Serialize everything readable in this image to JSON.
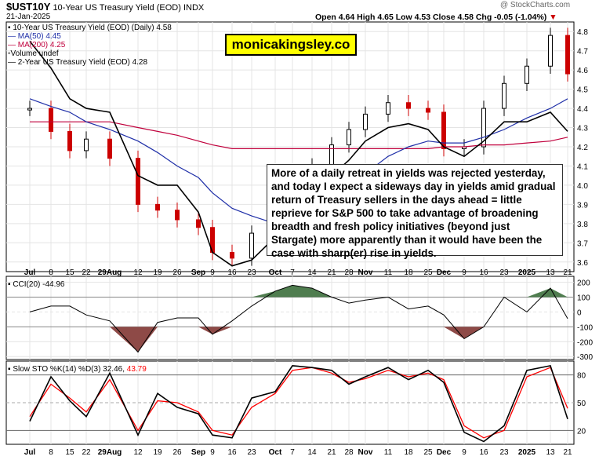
{
  "header": {
    "symbol": "$UST10Y",
    "name": "10-Year US Treasury Yield (EOD)",
    "exchange": "INDX",
    "date": "21-Jan-2025",
    "ohlc": "Open 4.64  High 4.65  Low 4.53  Close 4.58  Chg -0.05 (-1.04%)",
    "chg_marker": "▼",
    "copyright": "@ StockCharts.com"
  },
  "brand_label": "monicakingsley.co",
  "annotation": "More of a daily retreat in yields was rejected yesterday, and today I expect a sideways day in yields amid gradual return of Treasury sellers in the days ahead = little reprieve for S&P 500 to take advantage of broadening breadth and fresh policy initiatives (beyond just Stargate) more apparently than it would have been the case with sharp(er) rise in yields.",
  "legend": {
    "main": "10-Year US Treasury Yield (EOD) (Daily) 4.58",
    "ma50": "MA(50) 4.45",
    "ma200": "MA(200) 4.25",
    "volume": "Volume undef",
    "two_year": "2-Year US Treasury Yield (EOD) 4.28",
    "cci": "CCI(20) -44.96",
    "sto_prefix": "Slow STO %K(14) %D(3) 32.46,",
    "sto_d_value": "43.79"
  },
  "colors": {
    "up": "#000000",
    "down": "#cc0000",
    "ma50": "#1f2fa8",
    "ma200": "#c0003c",
    "two_year": "#000000",
    "cci_pos": "#4f7d4f",
    "cci_neg": "#8e4a47",
    "sto_k": "#000000",
    "sto_d": "#ff0000",
    "panel_bg": "#ffffff"
  },
  "x_axis_labels": [
    "Jul",
    "8",
    "15",
    "22",
    "29Aug",
    "12",
    "19",
    "26",
    "Sep",
    "9",
    "16",
    "23",
    "Oct",
    "7",
    "14",
    "21",
    "28",
    "Nov",
    "11",
    "18",
    "25",
    "Dec",
    "9",
    "16",
    "23",
    "2025",
    "13",
    "21"
  ],
  "chart_data": [
    {
      "type": "bar",
      "title": "10-Year US Treasury Yield (EOD) (Daily)",
      "ylim": [
        3.55,
        4.85
      ],
      "yticks": [
        "4.8",
        "4.7",
        "4.6",
        "4.5",
        "4.4",
        "4.3",
        "4.2",
        "4.1",
        "4.0",
        "3.9",
        "3.8",
        "3.7",
        "3.6"
      ],
      "x": [
        "Jul",
        "8",
        "15",
        "22",
        "29Aug",
        "12",
        "19",
        "26",
        "Sep",
        "9",
        "16",
        "23",
        "Oct",
        "7",
        "14",
        "21",
        "28",
        "Nov",
        "11",
        "18",
        "25",
        "Dec",
        "9",
        "16",
        "23",
        "2025",
        "13",
        "21"
      ],
      "close": [
        4.4,
        4.28,
        4.18,
        4.24,
        4.14,
        3.9,
        3.87,
        3.82,
        3.78,
        3.65,
        3.62,
        3.75,
        3.79,
        4.02,
        4.1,
        4.21,
        4.29,
        4.37,
        4.43,
        4.4,
        4.38,
        4.19,
        4.2,
        4.4,
        4.53,
        4.62,
        4.78,
        4.58
      ],
      "two_year": [
        4.75,
        4.61,
        4.45,
        4.4,
        4.38,
        4.05,
        4.0,
        4.0,
        3.86,
        3.65,
        3.58,
        3.61,
        3.73,
        3.95,
        4.02,
        4.05,
        4.13,
        4.23,
        4.3,
        4.32,
        4.29,
        4.2,
        4.15,
        4.23,
        4.33,
        4.33,
        4.38,
        4.28
      ],
      "ma50": [
        4.45,
        4.41,
        4.38,
        4.33,
        4.29,
        4.23,
        4.17,
        4.1,
        4.04,
        3.96,
        3.88,
        3.84,
        3.8,
        3.8,
        3.83,
        3.88,
        3.98,
        4.06,
        4.15,
        4.2,
        4.23,
        4.22,
        4.22,
        4.25,
        4.29,
        4.35,
        4.4,
        4.45
      ],
      "ma200": [
        4.33,
        4.33,
        4.33,
        4.33,
        4.33,
        4.3,
        4.28,
        4.26,
        4.23,
        4.21,
        4.19,
        4.19,
        4.19,
        4.19,
        4.19,
        4.19,
        4.19,
        4.19,
        4.19,
        4.19,
        4.19,
        4.2,
        4.2,
        4.21,
        4.21,
        4.22,
        4.23,
        4.25
      ]
    },
    {
      "type": "area",
      "title": "CCI(20)",
      "ylim": [
        -320,
        240
      ],
      "yticks": [
        "200",
        "100",
        "0",
        "-100",
        "-200",
        "-300"
      ],
      "values": [
        0,
        40,
        40,
        -20,
        -60,
        -270,
        -70,
        -40,
        -40,
        -150,
        -60,
        40,
        140,
        180,
        160,
        100,
        60,
        80,
        100,
        20,
        40,
        -20,
        -180,
        -100,
        100,
        0,
        160,
        -44.96
      ]
    },
    {
      "type": "line",
      "title": "Slow STO %K(14) %D(3)",
      "ylim": [
        5,
        95
      ],
      "yticks": [
        "80",
        "50",
        "20"
      ],
      "series": [
        {
          "name": "%K",
          "values": [
            30,
            78,
            52,
            35,
            82,
            15,
            60,
            45,
            38,
            15,
            12,
            55,
            62,
            90,
            88,
            85,
            70,
            78,
            88,
            75,
            85,
            72,
            18,
            8,
            25,
            85,
            90,
            32.46
          ]
        },
        {
          "name": "%D",
          "values": [
            35,
            70,
            55,
            40,
            75,
            20,
            52,
            50,
            40,
            20,
            15,
            45,
            60,
            85,
            88,
            82,
            72,
            76,
            85,
            78,
            82,
            75,
            25,
            12,
            20,
            78,
            88,
            43.79
          ]
        }
      ]
    }
  ]
}
